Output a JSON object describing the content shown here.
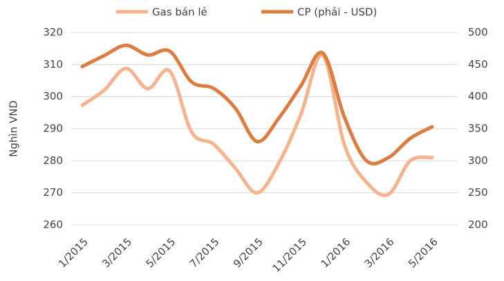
{
  "chart_data": {
    "type": "line",
    "y_label": "Nghìn VND",
    "categories": [
      "1/2015",
      null,
      "3/2015",
      null,
      "5/2015",
      null,
      "7/2015",
      null,
      "9/2015",
      null,
      "11/2015",
      null,
      "1/2016",
      null,
      "3/2016",
      null,
      "5/2016"
    ],
    "series": [
      {
        "name": "Gas bán lẻ",
        "color": "#f6b38e",
        "axis": "y",
        "values": [
          297.3,
          302,
          308.8,
          302.5,
          308,
          289,
          285.2,
          277.7,
          270,
          279.4,
          294.5,
          312.9,
          284.8,
          273.3,
          269.5,
          280,
          281
        ]
      },
      {
        "name": "CP (phải - USD)",
        "color": "#dc7c3e",
        "axis": "y2",
        "values": [
          447,
          464,
          480,
          465,
          471,
          423,
          413,
          382,
          330,
          367,
          417,
          468,
          367,
          300,
          305,
          335,
          353
        ]
      }
    ],
    "ylim": [
      260,
      320
    ],
    "yticks": [
      260,
      270,
      280,
      290,
      300,
      310,
      320
    ],
    "y2lim": [
      200,
      500
    ],
    "y2ticks": [
      200,
      250,
      300,
      350,
      400,
      450,
      500
    ],
    "grid": true,
    "legend": "top"
  }
}
